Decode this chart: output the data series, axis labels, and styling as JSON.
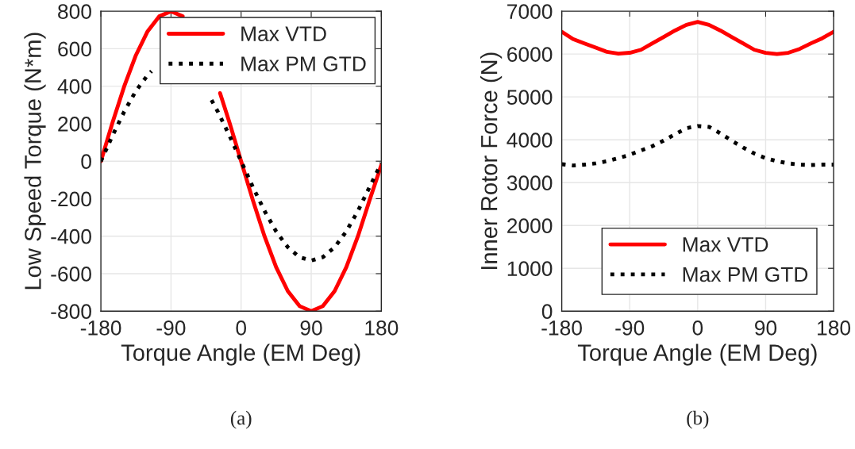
{
  "chart_data": [
    {
      "type": "line",
      "xlabel": "Torque Angle (EM Deg)",
      "ylabel": "Low Speed Torque (N*m)",
      "annotations": [
        "(a)"
      ],
      "series": [
        {
          "name": "Max VTD",
          "color": "#ff0000",
          "line_style": "solid",
          "x": [
            -180,
            -165,
            -150,
            -135,
            -120,
            -105,
            -90,
            -75,
            -45,
            -27,
            -15,
            0,
            15,
            30,
            45,
            60,
            75,
            90,
            105,
            120,
            135,
            150,
            165,
            180
          ],
          "values": [
            0,
            207,
            400,
            566,
            693,
            773,
            800,
            773,
            null,
            363,
            207,
            0,
            -207,
            -400,
            -566,
            -693,
            -773,
            -800,
            -773,
            -693,
            -566,
            -400,
            -207,
            -20
          ]
        },
        {
          "name": "Max PM GTD",
          "color": "#000000",
          "line_style": "dotted",
          "x": [
            -180,
            -165,
            -150,
            -135,
            -120,
            -115,
            -90,
            -38,
            -30,
            -15,
            0,
            15,
            30,
            45,
            60,
            75,
            90,
            105,
            120,
            135,
            150,
            165,
            180
          ],
          "values": [
            0,
            137,
            265,
            375,
            459,
            480,
            null,
            326,
            265,
            137,
            0,
            -137,
            -265,
            -375,
            -459,
            -512,
            -530,
            -512,
            -459,
            -375,
            -265,
            -137,
            -10
          ]
        }
      ],
      "xlim": [
        -180,
        180
      ],
      "xticks": [
        -180,
        -90,
        0,
        90,
        180
      ],
      "ylim": [
        -800,
        800
      ],
      "yticks": [
        -800,
        -600,
        -400,
        -200,
        0,
        200,
        400,
        600,
        800
      ],
      "grid": true,
      "legend": "top right"
    },
    {
      "type": "line",
      "xlabel": "Torque Angle (EM Deg)",
      "ylabel": "Inner Rotor Force (N)",
      "annotations": [
        "(b)"
      ],
      "x": [
        -180,
        -165,
        -150,
        -135,
        -120,
        -105,
        -90,
        -75,
        -60,
        -45,
        -30,
        -15,
        0,
        15,
        30,
        45,
        60,
        75,
        90,
        105,
        120,
        135,
        150,
        165,
        180
      ],
      "series": [
        {
          "name": "Max VTD",
          "color": "#ff0000",
          "line_style": "solid",
          "values": [
            6520,
            6350,
            6250,
            6150,
            6050,
            6010,
            6030,
            6100,
            6250,
            6400,
            6550,
            6680,
            6750,
            6680,
            6550,
            6400,
            6250,
            6100,
            6030,
            6000,
            6030,
            6120,
            6250,
            6370,
            6520
          ]
        },
        {
          "name": "Max PM GTD",
          "color": "#000000",
          "line_style": "dotted",
          "values": [
            3430,
            3400,
            3420,
            3450,
            3500,
            3570,
            3650,
            3750,
            3850,
            3980,
            4130,
            4270,
            4320,
            4300,
            4150,
            3980,
            3820,
            3680,
            3570,
            3500,
            3450,
            3420,
            3410,
            3420,
            3420
          ]
        }
      ],
      "xlim": [
        -180,
        180
      ],
      "xticks": [
        -180,
        -90,
        0,
        90,
        180
      ],
      "ylim": [
        0,
        7000
      ],
      "yticks": [
        0,
        1000,
        2000,
        3000,
        4000,
        5000,
        6000,
        7000
      ],
      "grid": true,
      "legend": "bottom right"
    }
  ]
}
